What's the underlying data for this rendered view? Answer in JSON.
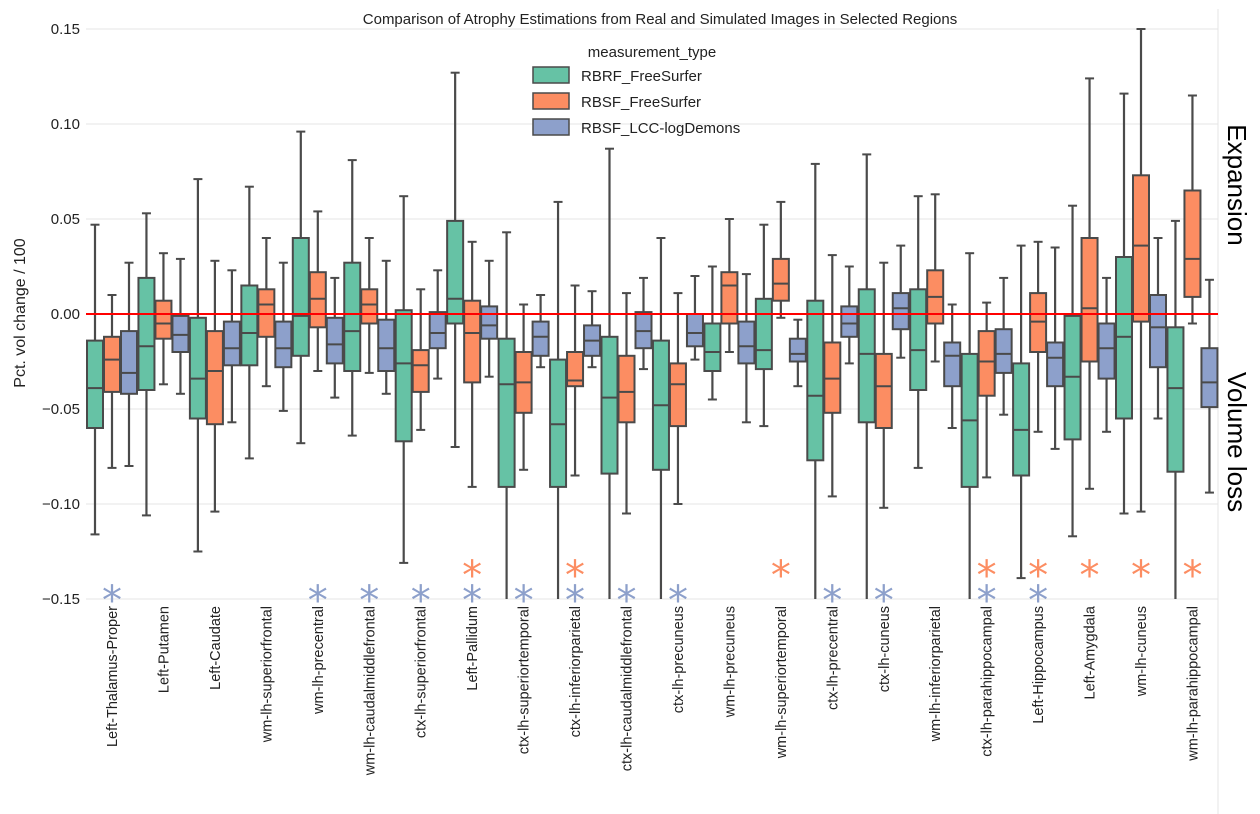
{
  "chart_data": {
    "type": "box",
    "title": "Comparison of Atrophy Estimations from Real and Simulated Images in Selected Regions",
    "ylabel": "Pct. vol change / 100",
    "ylim": [
      -0.15,
      0.15
    ],
    "yticks": [
      0.15,
      0.1,
      0.05,
      0.0,
      -0.05,
      -0.1,
      -0.15
    ],
    "ytick_labels": [
      "0.15",
      "0.10",
      "0.05",
      "0.00",
      "−0.05",
      "−0.10",
      "−0.15"
    ],
    "reference_line": {
      "y": 0.0,
      "color": "#ff0000"
    },
    "side_labels": {
      "top": "Expansion",
      "bottom": "Volume loss"
    },
    "legend": {
      "title": "measurement_type",
      "position": "top-center"
    },
    "categories": [
      "Left-Thalamus-Proper",
      "Left-Putamen",
      "Left-Caudate",
      "wm-lh-superiorfrontal",
      "wm-lh-precentral",
      "wm-lh-caudalmiddlefrontal",
      "ctx-lh-superiorfrontal",
      "Left-Pallidum",
      "ctx-lh-superiortemporal",
      "ctx-lh-inferiorparietal",
      "ctx-lh-caudalmiddlefrontal",
      "ctx-lh-precuneus",
      "wm-lh-precuneus",
      "wm-lh-superiortemporal",
      "ctx-lh-precentral",
      "ctx-lh-cuneus",
      "wm-lh-inferiorparietal",
      "ctx-lh-parahippocampal",
      "Left-Hippocampus",
      "Left-Amygdala",
      "wm-lh-cuneus",
      "wm-lh-parahippocampal"
    ],
    "series": [
      {
        "name": "RBRF_FreeSurfer",
        "color": "#66c2a5",
        "boxes": [
          [
            -0.116,
            -0.06,
            -0.039,
            -0.014,
            0.047
          ],
          [
            -0.106,
            -0.04,
            -0.017,
            0.019,
            0.053
          ],
          [
            -0.125,
            -0.055,
            -0.034,
            -0.002,
            0.071
          ],
          [
            -0.076,
            -0.027,
            -0.01,
            0.015,
            0.067
          ],
          [
            -0.068,
            -0.022,
            -0.001,
            0.04,
            0.096
          ],
          [
            -0.064,
            -0.03,
            -0.009,
            0.027,
            0.081
          ],
          [
            -0.131,
            -0.067,
            -0.026,
            0.002,
            0.062
          ],
          [
            -0.07,
            -0.005,
            0.008,
            0.049,
            0.127
          ],
          [
            -0.155,
            -0.091,
            -0.037,
            -0.013,
            0.043
          ],
          [
            -0.155,
            -0.091,
            -0.058,
            -0.024,
            0.059
          ],
          [
            -0.155,
            -0.084,
            -0.044,
            -0.012,
            0.087
          ],
          [
            -0.155,
            -0.082,
            -0.048,
            -0.014,
            0.04
          ],
          [
            -0.045,
            -0.03,
            -0.02,
            -0.005,
            0.025
          ],
          [
            -0.059,
            -0.029,
            -0.019,
            0.008,
            0.047
          ],
          [
            -0.155,
            -0.077,
            -0.043,
            0.007,
            0.079
          ],
          [
            -0.155,
            -0.057,
            -0.021,
            0.013,
            0.084
          ],
          [
            -0.081,
            -0.04,
            -0.019,
            0.013,
            0.062
          ],
          [
            -0.155,
            -0.091,
            -0.056,
            -0.021,
            0.032
          ],
          [
            -0.139,
            -0.085,
            -0.061,
            -0.026,
            0.036
          ],
          [
            -0.117,
            -0.066,
            -0.033,
            -0.001,
            0.057
          ],
          [
            -0.105,
            -0.055,
            -0.012,
            0.03,
            0.116
          ],
          [
            -0.155,
            -0.083,
            -0.039,
            -0.007,
            0.049
          ]
        ]
      },
      {
        "name": "RBSF_FreeSurfer",
        "color": "#fc8d62",
        "boxes": [
          [
            -0.081,
            -0.041,
            -0.024,
            -0.012,
            0.01
          ],
          [
            -0.037,
            -0.013,
            -0.005,
            0.007,
            0.032
          ],
          [
            -0.104,
            -0.058,
            -0.03,
            -0.009,
            0.028
          ],
          [
            -0.038,
            -0.012,
            0.005,
            0.013,
            0.04
          ],
          [
            -0.03,
            -0.007,
            0.008,
            0.022,
            0.054
          ],
          [
            -0.031,
            -0.005,
            0.005,
            0.013,
            0.04
          ],
          [
            -0.061,
            -0.041,
            -0.027,
            -0.019,
            0.013
          ],
          [
            -0.091,
            -0.036,
            -0.01,
            0.007,
            0.038
          ],
          [
            -0.082,
            -0.052,
            -0.036,
            -0.02,
            0.005
          ],
          [
            -0.085,
            -0.038,
            -0.035,
            -0.02,
            0.015
          ],
          [
            -0.105,
            -0.057,
            -0.041,
            -0.022,
            0.011
          ],
          [
            -0.1,
            -0.059,
            -0.037,
            -0.026,
            0.011
          ],
          [
            -0.02,
            -0.005,
            0.015,
            0.022,
            0.05
          ],
          [
            -0.002,
            0.007,
            0.016,
            0.029,
            0.059
          ],
          [
            -0.096,
            -0.052,
            -0.034,
            -0.015,
            0.031
          ],
          [
            -0.102,
            -0.06,
            -0.038,
            -0.021,
            0.027
          ],
          [
            -0.025,
            -0.005,
            0.009,
            0.023,
            0.063
          ],
          [
            -0.086,
            -0.043,
            -0.025,
            -0.009,
            0.006
          ],
          [
            -0.062,
            -0.02,
            -0.004,
            0.011,
            0.038
          ],
          [
            -0.092,
            -0.025,
            0.003,
            0.04,
            0.124
          ],
          [
            -0.104,
            -0.004,
            0.036,
            0.073,
            0.15
          ],
          [
            -0.005,
            0.009,
            0.029,
            0.065,
            0.115
          ]
        ]
      },
      {
        "name": "RBSF_LCC-logDemons",
        "color": "#8da0cb",
        "boxes": [
          [
            -0.08,
            -0.042,
            -0.031,
            -0.009,
            0.027
          ],
          [
            -0.042,
            -0.02,
            -0.011,
            -0.001,
            0.029
          ],
          [
            -0.057,
            -0.027,
            -0.018,
            -0.004,
            0.023
          ],
          [
            -0.051,
            -0.028,
            -0.018,
            -0.004,
            0.027
          ],
          [
            -0.044,
            -0.026,
            -0.016,
            -0.002,
            0.019
          ],
          [
            -0.042,
            -0.03,
            -0.018,
            -0.003,
            0.028
          ],
          [
            -0.034,
            -0.018,
            -0.01,
            0.001,
            0.023
          ],
          [
            -0.033,
            -0.013,
            -0.006,
            0.004,
            0.028
          ],
          [
            -0.028,
            -0.022,
            -0.012,
            -0.004,
            0.01
          ],
          [
            -0.028,
            -0.022,
            -0.014,
            -0.006,
            0.012
          ],
          [
            -0.029,
            -0.018,
            -0.009,
            0.001,
            0.019
          ],
          [
            -0.024,
            -0.017,
            -0.01,
            0.0,
            0.02
          ],
          [
            -0.057,
            -0.026,
            -0.017,
            -0.004,
            0.021
          ],
          [
            -0.038,
            -0.025,
            -0.021,
            -0.013,
            -0.003
          ],
          [
            -0.026,
            -0.012,
            -0.005,
            0.004,
            0.025
          ],
          [
            -0.023,
            -0.008,
            0.003,
            0.011,
            0.036
          ],
          [
            -0.06,
            -0.038,
            -0.022,
            -0.015,
            0.005
          ],
          [
            -0.053,
            -0.031,
            -0.021,
            -0.008,
            0.019
          ],
          [
            -0.071,
            -0.038,
            -0.023,
            -0.015,
            0.035
          ],
          [
            -0.062,
            -0.034,
            -0.018,
            -0.005,
            0.019
          ],
          [
            -0.055,
            -0.028,
            -0.007,
            0.01,
            0.04
          ],
          [
            -0.094,
            -0.049,
            -0.036,
            -0.018,
            0.018
          ]
        ]
      }
    ],
    "significance_markers": [
      {
        "category": "Left-Thalamus-Proper",
        "series": "RBSF_LCC-logDemons"
      },
      {
        "category": "wm-lh-precentral",
        "series": "RBSF_LCC-logDemons"
      },
      {
        "category": "wm-lh-caudalmiddlefrontal",
        "series": "RBSF_LCC-logDemons"
      },
      {
        "category": "ctx-lh-superiorfrontal",
        "series": "RBSF_LCC-logDemons"
      },
      {
        "category": "Left-Pallidum",
        "series": "RBSF_FreeSurfer"
      },
      {
        "category": "Left-Pallidum",
        "series": "RBSF_LCC-logDemons"
      },
      {
        "category": "ctx-lh-superiortemporal",
        "series": "RBSF_LCC-logDemons"
      },
      {
        "category": "ctx-lh-inferiorparietal",
        "series": "RBSF_FreeSurfer"
      },
      {
        "category": "ctx-lh-inferiorparietal",
        "series": "RBSF_LCC-logDemons"
      },
      {
        "category": "ctx-lh-caudalmiddlefrontal",
        "series": "RBSF_LCC-logDemons"
      },
      {
        "category": "ctx-lh-precuneus",
        "series": "RBSF_LCC-logDemons"
      },
      {
        "category": "wm-lh-superiortemporal",
        "series": "RBSF_FreeSurfer"
      },
      {
        "category": "ctx-lh-precentral",
        "series": "RBSF_LCC-logDemons"
      },
      {
        "category": "ctx-lh-cuneus",
        "series": "RBSF_LCC-logDemons"
      },
      {
        "category": "ctx-lh-parahippocampal",
        "series": "RBSF_FreeSurfer"
      },
      {
        "category": "ctx-lh-parahippocampal",
        "series": "RBSF_LCC-logDemons"
      },
      {
        "category": "Left-Hippocampus",
        "series": "RBSF_FreeSurfer"
      },
      {
        "category": "Left-Hippocampus",
        "series": "RBSF_LCC-logDemons"
      },
      {
        "category": "Left-Amygdala",
        "series": "RBSF_FreeSurfer"
      },
      {
        "category": "wm-lh-cuneus",
        "series": "RBSF_FreeSurfer"
      },
      {
        "category": "wm-lh-parahippocampal",
        "series": "RBSF_FreeSurfer"
      }
    ],
    "marker_symbol": "*",
    "grid": true
  }
}
